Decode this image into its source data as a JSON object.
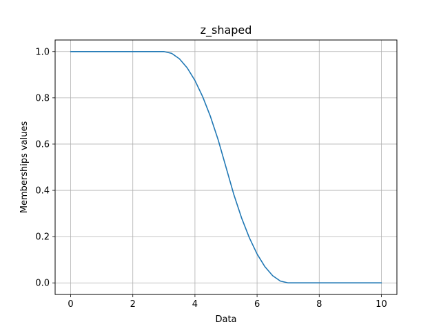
{
  "chart_data": {
    "type": "line",
    "title": "z_shaped",
    "xlabel": "Data",
    "ylabel": "Memberships values",
    "xlim": [
      -0.5,
      10.5
    ],
    "ylim": [
      -0.05,
      1.05
    ],
    "xticks": [
      0,
      2,
      4,
      6,
      8,
      10
    ],
    "yticks": [
      0.0,
      0.2,
      0.4,
      0.6,
      0.8,
      1.0
    ],
    "xtick_labels": [
      "0",
      "2",
      "4",
      "6",
      "8",
      "10"
    ],
    "ytick_labels": [
      "0.0",
      "0.2",
      "0.4",
      "0.6",
      "0.8",
      "1.0"
    ],
    "grid": true,
    "series": [
      {
        "color": "#1f77b4",
        "x": [
          0,
          1,
          2,
          3,
          3.25,
          3.5,
          3.75,
          4,
          4.25,
          4.5,
          4.75,
          5,
          5.25,
          5.5,
          5.75,
          6,
          6.25,
          6.5,
          6.75,
          7,
          8,
          9,
          10
        ],
        "y": [
          1.0,
          1.0,
          1.0,
          1.0,
          0.9922,
          0.9688,
          0.9297,
          0.875,
          0.8047,
          0.7188,
          0.6172,
          0.5,
          0.3828,
          0.2812,
          0.1953,
          0.125,
          0.0703,
          0.0312,
          0.0078,
          0.0,
          0.0,
          0.0,
          0.0
        ]
      }
    ]
  }
}
